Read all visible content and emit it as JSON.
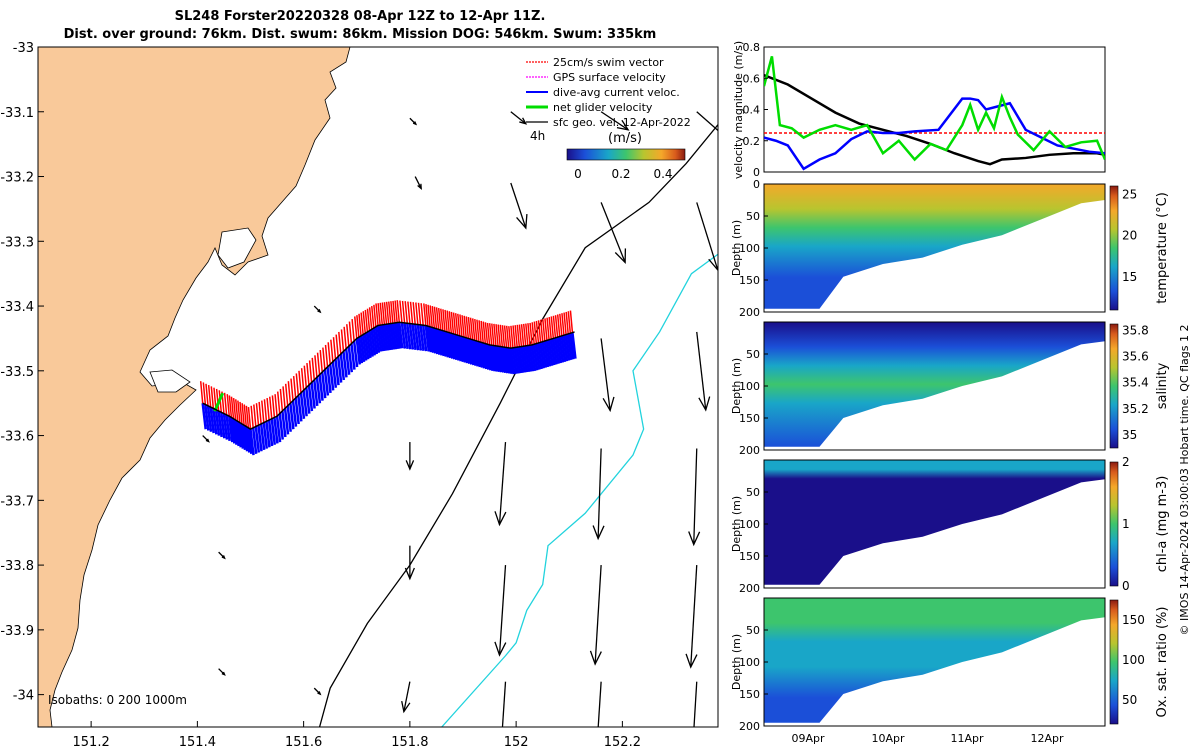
{
  "title": {
    "line1": "SL248 Forster20220328 08-Apr 12Z to 12-Apr 11Z.",
    "line2": "Dist. over ground: 76km. Dist. swum: 86km. Mission DOG: 546km. Swum: 335km"
  },
  "colors": {
    "land": "#f9c99a",
    "swim_vector": "#ff0000",
    "gps_velocity": "#ff00ff",
    "dive_avg_current": "#0000ff",
    "net_glider_velocity": "#00dd00",
    "sfc_geo_vel": "#000000",
    "isobath_shallow": "#000000",
    "isobath_deep": "#22d3dd",
    "threshold_line": "#ff0000"
  },
  "chart_data": [
    {
      "type": "map",
      "xlim": [
        151.1,
        152.38
      ],
      "ylim": [
        -34.05,
        -33.0
      ],
      "xticks": [
        151.2,
        151.4,
        151.6,
        151.8,
        152.0,
        152.2
      ],
      "xtick_labels": [
        "151.2",
        "151.4",
        "151.6",
        "151.8",
        "152",
        "152.2"
      ],
      "yticks": [
        -33.0,
        -33.1,
        -33.2,
        -33.3,
        -33.4,
        -33.5,
        -33.6,
        -33.7,
        -33.8,
        -33.9,
        -34.0
      ],
      "ytick_labels": [
        "-33",
        "-33.1",
        "-33.2",
        "-33.3",
        "-33.4",
        "-33.5",
        "-33.6",
        "-33.7",
        "-33.8",
        "-33.9",
        "-34"
      ],
      "legend": {
        "entries": [
          "25cm/s swim vector",
          "GPS surface velocity",
          "dive-avg current veloc.",
          "net glider velocity",
          "sfc geo. vel. 12-Apr-2022"
        ],
        "placement": "top-right"
      },
      "interval_label": "4h",
      "colorbar": {
        "label": "(m/s)",
        "ticks": [
          "0",
          "0.2",
          "0.4"
        ],
        "range": [
          0,
          0.5
        ]
      },
      "isobaths_label": "Isobaths: 0   200  1000m",
      "track": [
        [
          151.41,
          -33.55
        ],
        [
          151.46,
          -33.57
        ],
        [
          151.5,
          -33.59
        ],
        [
          151.55,
          -33.57
        ],
        [
          151.6,
          -33.53
        ],
        [
          151.65,
          -33.49
        ],
        [
          151.7,
          -33.45
        ],
        [
          151.74,
          -33.43
        ],
        [
          151.78,
          -33.425
        ],
        [
          151.83,
          -33.43
        ],
        [
          151.87,
          -33.44
        ],
        [
          151.91,
          -33.45
        ],
        [
          151.95,
          -33.46
        ],
        [
          151.99,
          -33.465
        ],
        [
          152.03,
          -33.46
        ],
        [
          152.07,
          -33.45
        ],
        [
          152.11,
          -33.44
        ]
      ],
      "isobath_200": [
        [
          152.38,
          -33.12
        ],
        [
          152.32,
          -33.18
        ],
        [
          152.25,
          -33.24
        ],
        [
          152.13,
          -33.31
        ],
        [
          152.05,
          -33.42
        ],
        [
          151.97,
          -33.55
        ],
        [
          151.88,
          -33.69
        ],
        [
          151.8,
          -33.8
        ],
        [
          151.72,
          -33.89
        ],
        [
          151.65,
          -33.99
        ],
        [
          151.63,
          -34.05
        ]
      ],
      "isobath_1000": [
        [
          152.38,
          -33.32
        ],
        [
          152.33,
          -33.35
        ],
        [
          152.27,
          -33.44
        ],
        [
          152.22,
          -33.5
        ],
        [
          152.24,
          -33.59
        ],
        [
          152.22,
          -33.63
        ],
        [
          152.13,
          -33.72
        ],
        [
          152.06,
          -33.77
        ],
        [
          152.05,
          -33.83
        ],
        [
          152.02,
          -33.87
        ],
        [
          152.0,
          -33.92
        ],
        [
          151.98,
          -33.94
        ],
        [
          151.86,
          -34.05
        ]
      ],
      "geo_vectors": [
        {
          "lon": 151.8,
          "lat": -33.11,
          "u": 0.004,
          "v": -0.004
        },
        {
          "lon": 151.99,
          "lat": -33.1,
          "u": 0.01,
          "v": -0.008
        },
        {
          "lon": 152.16,
          "lat": -33.1,
          "u": 0.018,
          "v": -0.012
        },
        {
          "lon": 152.34,
          "lat": -33.1,
          "u": 0.025,
          "v": -0.022
        },
        {
          "lon": 151.81,
          "lat": -33.2,
          "u": 0.004,
          "v": -0.008
        },
        {
          "lon": 151.99,
          "lat": -33.21,
          "u": 0.01,
          "v": -0.03
        },
        {
          "lon": 152.16,
          "lat": -33.24,
          "u": 0.016,
          "v": -0.04
        },
        {
          "lon": 152.34,
          "lat": -33.24,
          "u": 0.014,
          "v": -0.045
        },
        {
          "lon": 151.62,
          "lat": -33.4,
          "u": 0.004,
          "v": -0.004
        },
        {
          "lon": 152.16,
          "lat": -33.45,
          "u": 0.006,
          "v": -0.048
        },
        {
          "lon": 152.34,
          "lat": -33.44,
          "u": 0.006,
          "v": -0.052
        },
        {
          "lon": 151.41,
          "lat": -33.6,
          "u": 0.004,
          "v": -0.004
        },
        {
          "lon": 151.8,
          "lat": -33.61,
          "u": 0.0,
          "v": -0.018
        },
        {
          "lon": 151.98,
          "lat": -33.61,
          "u": -0.004,
          "v": -0.055
        },
        {
          "lon": 152.16,
          "lat": -33.62,
          "u": -0.002,
          "v": -0.06
        },
        {
          "lon": 152.34,
          "lat": -33.62,
          "u": -0.002,
          "v": -0.064
        },
        {
          "lon": 151.44,
          "lat": -33.78,
          "u": 0.004,
          "v": -0.004
        },
        {
          "lon": 151.8,
          "lat": -33.77,
          "u": 0.0,
          "v": -0.022
        },
        {
          "lon": 151.98,
          "lat": -33.8,
          "u": -0.004,
          "v": -0.06
        },
        {
          "lon": 152.16,
          "lat": -33.8,
          "u": -0.004,
          "v": -0.066
        },
        {
          "lon": 152.34,
          "lat": -33.8,
          "u": -0.004,
          "v": -0.068
        },
        {
          "lon": 151.44,
          "lat": -33.96,
          "u": 0.004,
          "v": -0.004
        },
        {
          "lon": 151.62,
          "lat": -33.99,
          "u": 0.004,
          "v": -0.004
        },
        {
          "lon": 151.8,
          "lat": -33.98,
          "u": -0.004,
          "v": -0.02
        },
        {
          "lon": 151.98,
          "lat": -33.98,
          "u": -0.004,
          "v": -0.06
        },
        {
          "lon": 152.16,
          "lat": -33.98,
          "u": -0.004,
          "v": -0.062
        },
        {
          "lon": 152.34,
          "lat": -33.98,
          "u": -0.004,
          "v": -0.066
        }
      ]
    },
    {
      "type": "line",
      "ylabel": "velocity magnitude (m/s)",
      "ylim": [
        0,
        0.8
      ],
      "yticks": [
        0,
        0.2,
        0.4,
        0.6,
        0.8
      ],
      "xlim": [
        0,
        4.3
      ],
      "threshold": 0.25,
      "series": [
        {
          "color": "#000000",
          "x": [
            0,
            0.3,
            0.6,
            0.9,
            1.2,
            1.5,
            1.8,
            2.1,
            2.4,
            2.7,
            2.85,
            3.0,
            3.3,
            3.6,
            3.9,
            4.2,
            4.3
          ],
          "y": [
            0.62,
            0.56,
            0.47,
            0.38,
            0.31,
            0.27,
            0.23,
            0.18,
            0.12,
            0.07,
            0.05,
            0.08,
            0.09,
            0.11,
            0.12,
            0.12,
            0.11
          ]
        },
        {
          "color": "#0000ff",
          "x": [
            0,
            0.15,
            0.3,
            0.5,
            0.7,
            0.9,
            1.1,
            1.3,
            1.5,
            1.7,
            1.9,
            2.2,
            2.5,
            2.6,
            2.7,
            2.8,
            3.1,
            3.3,
            3.5,
            3.7,
            3.9,
            4.1,
            4.3
          ],
          "y": [
            0.22,
            0.2,
            0.17,
            0.02,
            0.08,
            0.12,
            0.21,
            0.26,
            0.25,
            0.25,
            0.26,
            0.27,
            0.47,
            0.47,
            0.46,
            0.4,
            0.44,
            0.27,
            0.22,
            0.17,
            0.15,
            0.13,
            0.12
          ]
        },
        {
          "color": "#00dd00",
          "x": [
            0,
            0.1,
            0.2,
            0.35,
            0.5,
            0.7,
            0.9,
            1.1,
            1.3,
            1.5,
            1.7,
            1.9,
            2.1,
            2.3,
            2.5,
            2.6,
            2.7,
            2.8,
            2.9,
            3.0,
            3.1,
            3.2,
            3.4,
            3.6,
            3.8,
            4.0,
            4.2,
            4.3
          ],
          "y": [
            0.55,
            0.74,
            0.3,
            0.28,
            0.22,
            0.27,
            0.3,
            0.27,
            0.3,
            0.12,
            0.2,
            0.08,
            0.18,
            0.14,
            0.3,
            0.43,
            0.27,
            0.38,
            0.28,
            0.48,
            0.35,
            0.24,
            0.14,
            0.26,
            0.16,
            0.19,
            0.2,
            0.08
          ]
        }
      ],
      "xticks": [
        "09Apr",
        "10Apr",
        "11Apr",
        "12Apr"
      ]
    },
    {
      "type": "heatmap",
      "variable": "temperature",
      "ylabel": "Depth (m)",
      "ylim": [
        200,
        0
      ],
      "yticks": [
        0,
        50,
        100,
        150,
        200
      ],
      "colorbar_label": "temperature (°C)",
      "colorbar_ticks": [
        15,
        20,
        25
      ],
      "crange": [
        11,
        26
      ],
      "bottom_depth": [
        {
          "x": 0,
          "d": 195
        },
        {
          "x": 0.7,
          "d": 195
        },
        {
          "x": 1.0,
          "d": 145
        },
        {
          "x": 1.5,
          "d": 125
        },
        {
          "x": 2.0,
          "d": 115
        },
        {
          "x": 2.5,
          "d": 95
        },
        {
          "x": 3.0,
          "d": 80
        },
        {
          "x": 3.5,
          "d": 55
        },
        {
          "x": 4.0,
          "d": 30
        },
        {
          "x": 4.3,
          "d": 25
        }
      ],
      "profile": [
        {
          "d": 0,
          "c": 0.82
        },
        {
          "d": 40,
          "c": 0.72
        },
        {
          "d": 70,
          "c": 0.55
        },
        {
          "d": 100,
          "c": 0.35
        },
        {
          "d": 150,
          "c": 0.22
        },
        {
          "d": 200,
          "c": 0.15
        }
      ]
    },
    {
      "type": "heatmap",
      "variable": "salinity",
      "ylabel": "Depth (m)",
      "ylim": [
        200,
        0
      ],
      "yticks": [
        50,
        100,
        150,
        200
      ],
      "colorbar_label": "salinity",
      "colorbar_ticks": [
        35,
        35.2,
        35.4,
        35.6,
        35.8
      ],
      "crange": [
        34.9,
        35.85
      ],
      "bottom_depth": [
        {
          "x": 0,
          "d": 195
        },
        {
          "x": 0.7,
          "d": 195
        },
        {
          "x": 1.0,
          "d": 150
        },
        {
          "x": 1.5,
          "d": 130
        },
        {
          "x": 2.0,
          "d": 120
        },
        {
          "x": 2.5,
          "d": 100
        },
        {
          "x": 3.0,
          "d": 85
        },
        {
          "x": 3.5,
          "d": 60
        },
        {
          "x": 4.0,
          "d": 35
        },
        {
          "x": 4.3,
          "d": 30
        }
      ],
      "profile": [
        {
          "d": 0,
          "c": 0.05
        },
        {
          "d": 40,
          "c": 0.15
        },
        {
          "d": 70,
          "c": 0.4
        },
        {
          "d": 100,
          "c": 0.55
        },
        {
          "d": 130,
          "c": 0.45
        },
        {
          "d": 200,
          "c": 0.3
        }
      ]
    },
    {
      "type": "heatmap",
      "variable": "chl-a",
      "ylabel": "Depth (m)",
      "ylim": [
        200,
        0
      ],
      "yticks": [
        50,
        100,
        150,
        200
      ],
      "colorbar_label": "chl-a (mg m-3)",
      "colorbar_ticks": [
        0,
        1,
        2
      ],
      "crange": [
        0,
        2
      ],
      "bottom_depth": [
        {
          "x": 0,
          "d": 195
        },
        {
          "x": 0.7,
          "d": 195
        },
        {
          "x": 1.0,
          "d": 150
        },
        {
          "x": 1.5,
          "d": 130
        },
        {
          "x": 2.0,
          "d": 120
        },
        {
          "x": 2.5,
          "d": 100
        },
        {
          "x": 3.0,
          "d": 85
        },
        {
          "x": 3.5,
          "d": 60
        },
        {
          "x": 4.0,
          "d": 35
        },
        {
          "x": 4.3,
          "d": 30
        }
      ],
      "profile": [
        {
          "d": 0,
          "c": 0.45
        },
        {
          "d": 15,
          "c": 0.35
        },
        {
          "d": 30,
          "c": 0.12
        },
        {
          "d": 60,
          "c": 0.05
        },
        {
          "d": 200,
          "c": 0.03
        }
      ]
    },
    {
      "type": "heatmap",
      "variable": "oxygen",
      "ylabel": "Depth (m)",
      "ylim": [
        200,
        0
      ],
      "yticks": [
        50,
        100,
        150,
        200
      ],
      "colorbar_label": "Ox. sat. ratio (%)",
      "colorbar_ticks": [
        50,
        100,
        150
      ],
      "crange": [
        20,
        175
      ],
      "bottom_depth": [
        {
          "x": 0,
          "d": 195
        },
        {
          "x": 0.7,
          "d": 195
        },
        {
          "x": 1.0,
          "d": 150
        },
        {
          "x": 1.5,
          "d": 130
        },
        {
          "x": 2.0,
          "d": 120
        },
        {
          "x": 2.5,
          "d": 100
        },
        {
          "x": 3.0,
          "d": 85
        },
        {
          "x": 3.5,
          "d": 60
        },
        {
          "x": 4.0,
          "d": 35
        },
        {
          "x": 4.3,
          "d": 30
        }
      ],
      "profile": [
        {
          "d": 0,
          "c": 0.55
        },
        {
          "d": 40,
          "c": 0.52
        },
        {
          "d": 70,
          "c": 0.45
        },
        {
          "d": 110,
          "c": 0.38
        },
        {
          "d": 160,
          "c": 0.33
        },
        {
          "d": 200,
          "c": 0.3
        }
      ]
    }
  ],
  "credit": "© IMOS 14-Apr-2024 03:00:03 Hobart time. QC flags 1  2"
}
